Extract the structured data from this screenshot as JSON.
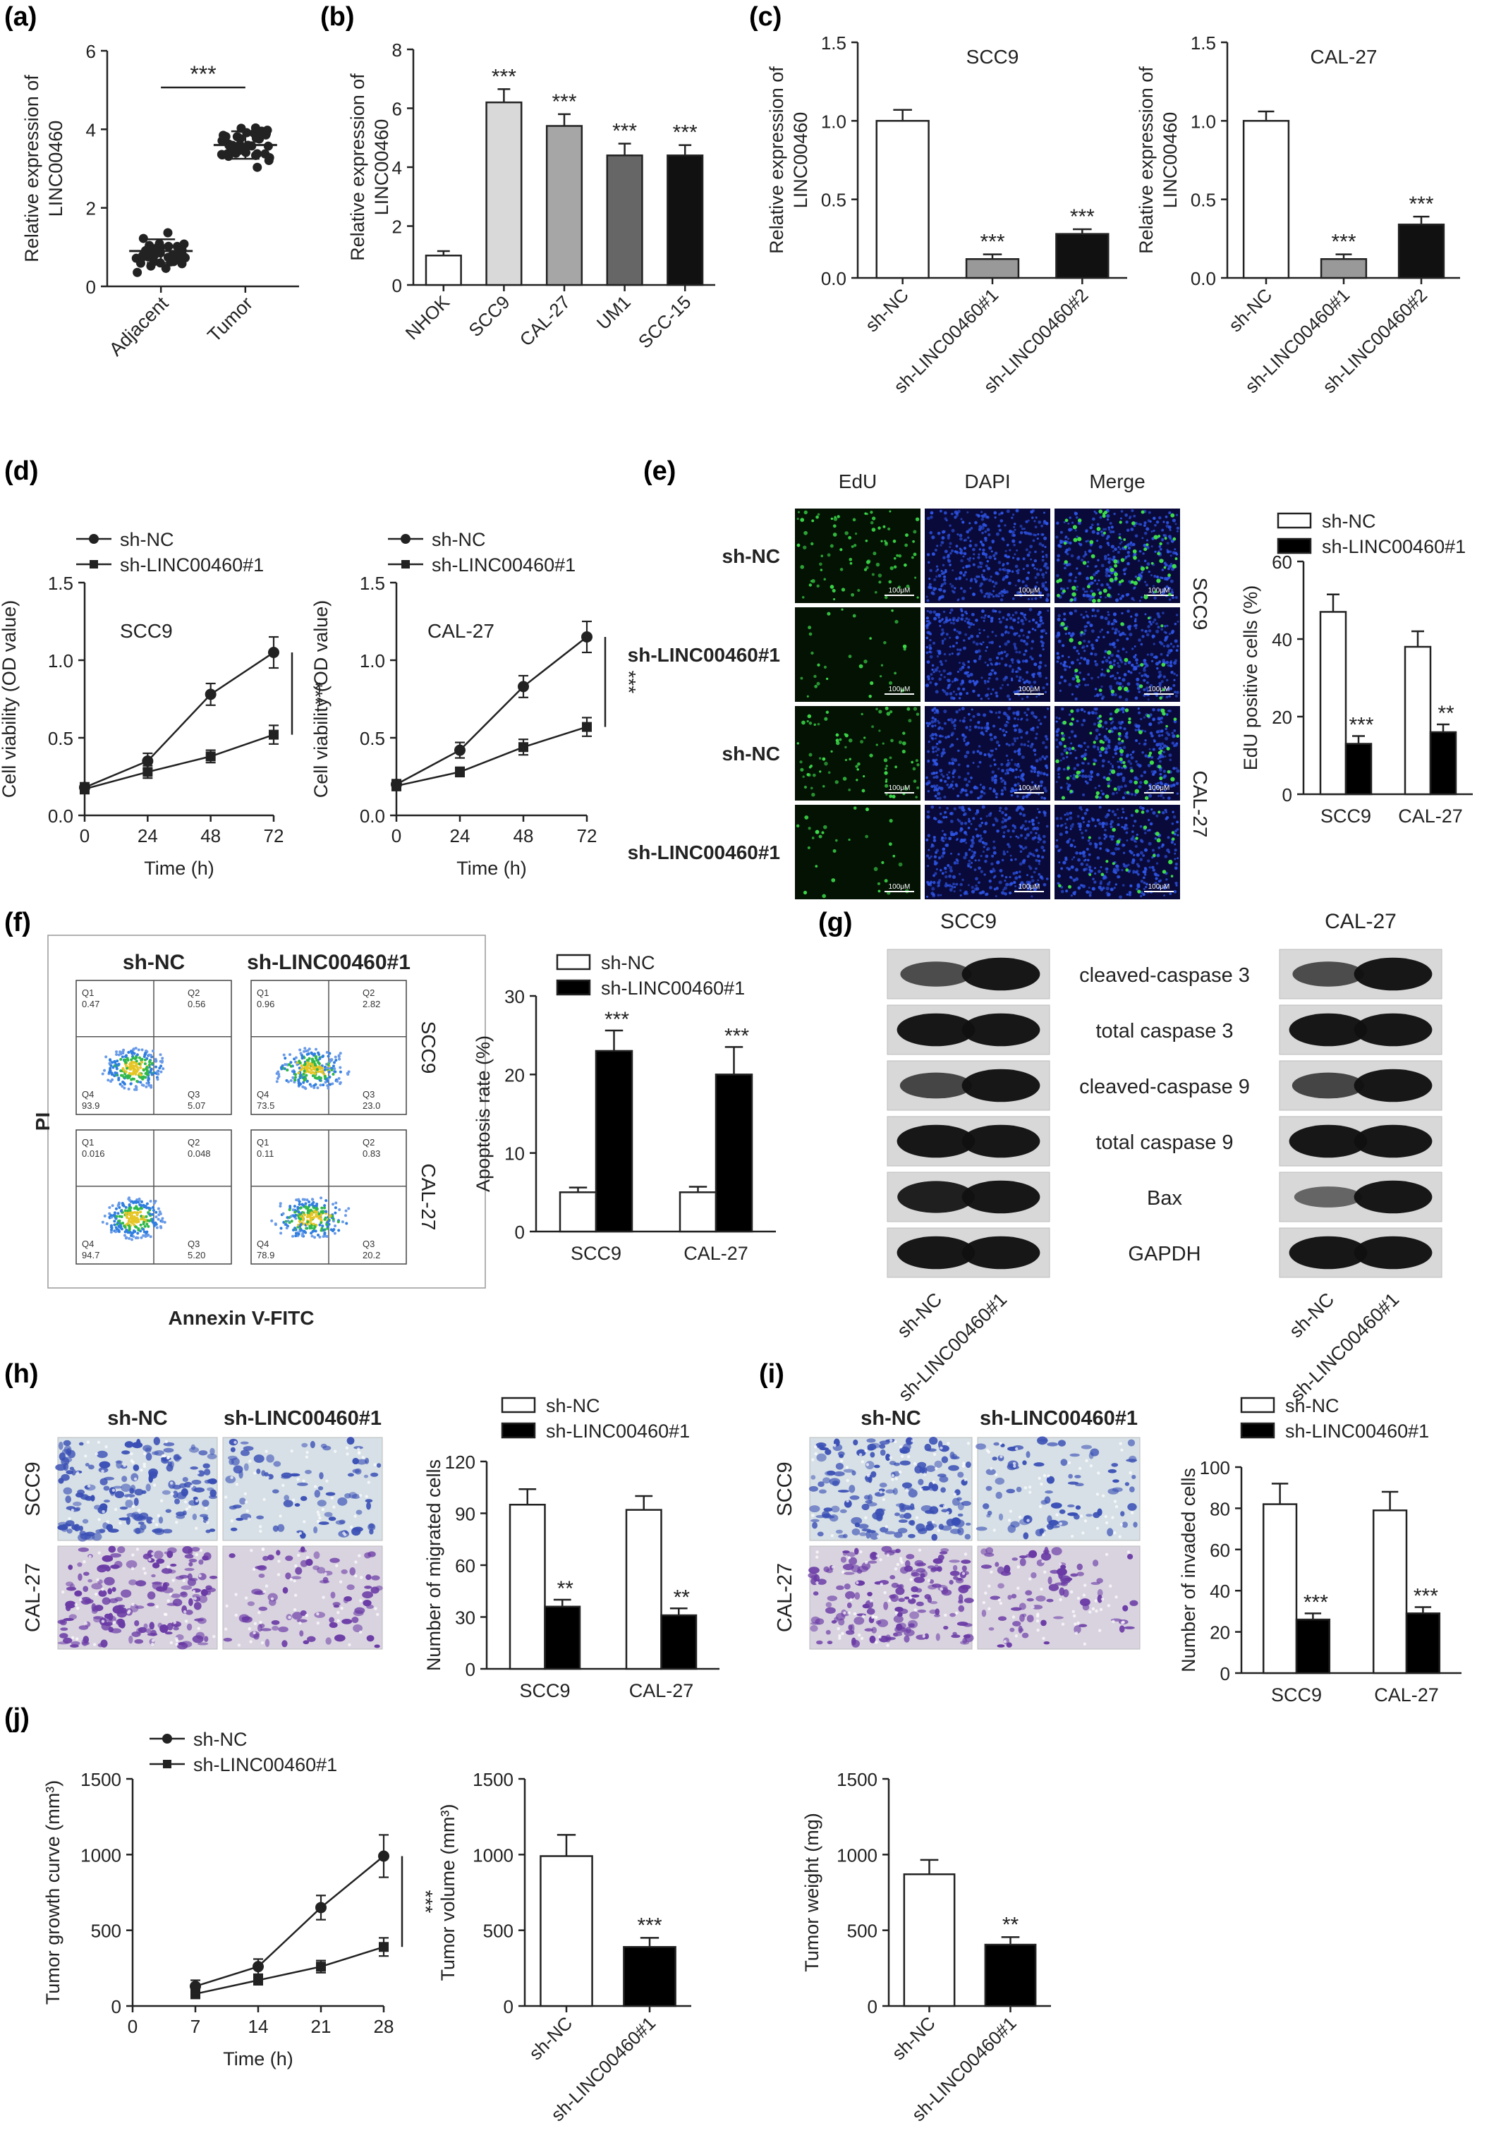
{
  "panel_letters": [
    "(a)",
    "(b)",
    "(c)",
    "(d)",
    "(e)",
    "(f)",
    "(g)",
    "(h)",
    "(i)",
    "(j)"
  ],
  "chart_data": [
    {
      "panel": "(a)",
      "type": "scatter",
      "ylabel": "Relative expression of LINC00460",
      "categories": [
        "Adjacent",
        "Tumor"
      ],
      "ylim": [
        0,
        6
      ],
      "yticks": [
        0,
        2,
        4,
        6
      ],
      "means": [
        0.9,
        3.6
      ],
      "sd": [
        0.3,
        0.35
      ],
      "annotation": "***"
    },
    {
      "panel": "(b)",
      "type": "bar",
      "ylabel": "Relative expression of LINC00460",
      "categories": [
        "NHOK",
        "SCC9",
        "CAL-27",
        "UM1",
        "SCC-15"
      ],
      "values": [
        1.0,
        6.2,
        5.4,
        4.4,
        4.4
      ],
      "errors": [
        0.15,
        0.45,
        0.4,
        0.4,
        0.35
      ],
      "stars": [
        "",
        "***",
        "***",
        "***",
        "***"
      ],
      "ylim": [
        0,
        8
      ],
      "yticks": [
        0,
        2,
        4,
        6,
        8
      ]
    },
    {
      "panel": "(c)",
      "type": "bar",
      "title": "SCC9",
      "ylabel": "Relative expression of LINC00460",
      "categories": [
        "sh-NC",
        "sh-LINC00460#1",
        "sh-LINC00460#2"
      ],
      "values": [
        1.0,
        0.12,
        0.28
      ],
      "errors": [
        0.07,
        0.03,
        0.03
      ],
      "stars": [
        "",
        "***",
        "***"
      ],
      "ylim": [
        0,
        1.5
      ],
      "yticks": [
        0.0,
        0.5,
        1.0,
        1.5
      ]
    },
    {
      "panel": "(c)",
      "type": "bar",
      "title": "CAL-27",
      "ylabel": "Relative expression of LINC00460",
      "categories": [
        "sh-NC",
        "sh-LINC00460#1",
        "sh-LINC00460#2"
      ],
      "values": [
        1.0,
        0.12,
        0.34
      ],
      "errors": [
        0.06,
        0.03,
        0.05
      ],
      "stars": [
        "",
        "***",
        "***"
      ],
      "ylim": [
        0,
        1.5
      ],
      "yticks": [
        0.0,
        0.5,
        1.0,
        1.5
      ]
    },
    {
      "panel": "(d)",
      "type": "line",
      "title": "SCC9",
      "xlabel": "Time (h)",
      "ylabel": "Cell viability (OD value)",
      "x": [
        0,
        24,
        48,
        72
      ],
      "xlim": [
        0,
        72
      ],
      "xticks": [
        0,
        24,
        48,
        72
      ],
      "ylim": [
        0,
        1.5
      ],
      "yticks": [
        0.0,
        0.5,
        1.0,
        1.5
      ],
      "series": [
        {
          "name": "sh-NC",
          "values": [
            0.18,
            0.35,
            0.78,
            1.05
          ],
          "errors": [
            0.03,
            0.05,
            0.07,
            0.1
          ]
        },
        {
          "name": "sh-LINC00460#1",
          "values": [
            0.17,
            0.28,
            0.38,
            0.52
          ],
          "errors": [
            0.03,
            0.04,
            0.04,
            0.06
          ]
        }
      ],
      "annotation": "***"
    },
    {
      "panel": "(d)",
      "type": "line",
      "title": "CAL-27",
      "xlabel": "Time (h)",
      "ylabel": "Cell viability (OD value)",
      "x": [
        0,
        24,
        48,
        72
      ],
      "xlim": [
        0,
        72
      ],
      "xticks": [
        0,
        24,
        48,
        72
      ],
      "ylim": [
        0,
        1.5
      ],
      "yticks": [
        0.0,
        0.5,
        1.0,
        1.5
      ],
      "series": [
        {
          "name": "sh-NC",
          "values": [
            0.2,
            0.42,
            0.83,
            1.15
          ],
          "errors": [
            0.03,
            0.05,
            0.07,
            0.1
          ]
        },
        {
          "name": "sh-LINC00460#1",
          "values": [
            0.19,
            0.28,
            0.44,
            0.57
          ],
          "errors": [
            0.03,
            0.03,
            0.05,
            0.06
          ]
        }
      ],
      "annotation": "***"
    },
    {
      "panel": "(e)",
      "type": "bar",
      "ylabel": "EdU positive cells (%)",
      "categories": [
        "SCC9",
        "CAL-27"
      ],
      "ylim": [
        0,
        60
      ],
      "yticks": [
        0,
        20,
        40,
        60
      ],
      "series": [
        {
          "name": "sh-NC",
          "values": [
            47,
            38
          ],
          "errors": [
            4.5,
            4
          ]
        },
        {
          "name": "sh-LINC00460#1",
          "values": [
            13,
            16
          ],
          "errors": [
            2,
            2
          ]
        }
      ],
      "stars": [
        "***",
        "**"
      ]
    },
    {
      "panel": "(f)",
      "type": "bar",
      "ylabel": "Apoptosis rate (%)",
      "categories": [
        "SCC9",
        "CAL-27"
      ],
      "ylim": [
        0,
        30
      ],
      "yticks": [
        0,
        10,
        20,
        30
      ],
      "series": [
        {
          "name": "sh-NC",
          "values": [
            5,
            5
          ],
          "errors": [
            0.6,
            0.7
          ]
        },
        {
          "name": "sh-LINC00460#1",
          "values": [
            23,
            20
          ],
          "errors": [
            2.6,
            3.5
          ]
        }
      ],
      "stars": [
        "***",
        "***"
      ]
    },
    {
      "panel": "(h)",
      "type": "bar",
      "ylabel": "Number of migrated cells",
      "categories": [
        "SCC9",
        "CAL-27"
      ],
      "ylim": [
        0,
        120
      ],
      "yticks": [
        0,
        30,
        60,
        90,
        120
      ],
      "series": [
        {
          "name": "sh-NC",
          "values": [
            95,
            92
          ],
          "errors": [
            9,
            8
          ]
        },
        {
          "name": "sh-LINC00460#1",
          "values": [
            36,
            31
          ],
          "errors": [
            4,
            4
          ]
        }
      ],
      "stars": [
        "**",
        "**"
      ]
    },
    {
      "panel": "(i)",
      "type": "bar",
      "ylabel": "Number of invaded cells",
      "categories": [
        "SCC9",
        "CAL-27"
      ],
      "ylim": [
        0,
        100
      ],
      "yticks": [
        0,
        20,
        40,
        60,
        80,
        100
      ],
      "series": [
        {
          "name": "sh-NC",
          "values": [
            82,
            79
          ],
          "errors": [
            10,
            9
          ]
        },
        {
          "name": "sh-LINC00460#1",
          "values": [
            26,
            29
          ],
          "errors": [
            3,
            3
          ]
        }
      ],
      "stars": [
        "***",
        "***"
      ]
    },
    {
      "panel": "(j)",
      "type": "line",
      "xlabel": "Time (h)",
      "ylabel": "Tumor growth curve (mm³)",
      "x": [
        7,
        14,
        21,
        28
      ],
      "xlim": [
        0,
        28
      ],
      "xticks": [
        0,
        7,
        14,
        21,
        28
      ],
      "ylim": [
        0,
        1500
      ],
      "yticks": [
        0,
        500,
        1000,
        1500
      ],
      "series": [
        {
          "name": "sh-NC",
          "values": [
            130,
            260,
            650,
            990
          ],
          "errors": [
            40,
            50,
            80,
            140
          ]
        },
        {
          "name": "sh-LINC00460#1",
          "values": [
            80,
            170,
            260,
            390
          ],
          "errors": [
            30,
            30,
            40,
            60
          ]
        }
      ],
      "annotation": "***"
    },
    {
      "panel": "(j)",
      "type": "bar",
      "ylabel": "Tumor volume (mm³)",
      "categories": [
        "sh-NC",
        "sh-LINC00460#1"
      ],
      "values": [
        990,
        390
      ],
      "errors": [
        140,
        60
      ],
      "stars": [
        "",
        "***"
      ],
      "ylim": [
        0,
        1500
      ],
      "yticks": [
        0,
        500,
        1000,
        1500
      ]
    },
    {
      "panel": "(j)",
      "type": "bar",
      "ylabel": "Tumor weight (mg)",
      "categories": [
        "sh-NC",
        "sh-LINC00460#1"
      ],
      "values": [
        870,
        405
      ],
      "errors": [
        95,
        50
      ],
      "stars": [
        "",
        "**"
      ],
      "ylim": [
        0,
        1500
      ],
      "yticks": [
        0,
        500,
        1000,
        1500
      ]
    }
  ],
  "panel_e_micro": {
    "columns": [
      "EdU",
      "DAPI",
      "Merge"
    ],
    "rows": [
      "sh-NC",
      "sh-LINC00460#1",
      "sh-NC",
      "sh-LINC00460#1"
    ],
    "side_labels": [
      "SCC9",
      "CAL-27"
    ],
    "scale_bar": "100μM"
  },
  "panel_f_flow": {
    "headers": [
      "sh-NC",
      "sh-LINC00460#1"
    ],
    "side_labels": [
      "SCC9",
      "CAL-27"
    ],
    "y_axis": "PI",
    "x_axis": "Annexin V-FITC",
    "quadrants": [
      {
        "Q1": "0.47",
        "Q2": "0.56",
        "Q3": "5.07",
        "Q4": "93.9"
      },
      {
        "Q1": "0.96",
        "Q2": "2.82",
        "Q3": "23.0",
        "Q4": "73.5"
      },
      {
        "Q1": "0.016",
        "Q2": "0.048",
        "Q3": "5.20",
        "Q4": "94.7"
      },
      {
        "Q1": "0.11",
        "Q2": "0.83",
        "Q3": "20.2",
        "Q4": "78.9"
      }
    ]
  },
  "panel_g_blot": {
    "headers": [
      "SCC9",
      "CAL-27"
    ],
    "proteins": [
      "cleaved-caspase 3",
      "total caspase 3",
      "cleaved-caspase 9",
      "total caspase 9",
      "Bax",
      "GAPDH"
    ],
    "lanes": [
      "sh-NC",
      "sh-LINC00460#1"
    ],
    "intensity": [
      [
        0.55,
        0.95,
        0.55,
        0.95
      ],
      [
        0.95,
        0.95,
        0.95,
        0.95
      ],
      [
        0.6,
        0.95,
        0.6,
        0.95
      ],
      [
        0.95,
        0.95,
        0.95,
        0.95
      ],
      [
        0.9,
        0.95,
        0.35,
        0.95
      ],
      [
        0.95,
        0.95,
        0.95,
        0.95
      ]
    ]
  },
  "panel_h_images": {
    "headers": [
      "sh-NC",
      "sh-LINC00460#1"
    ],
    "row_labels": [
      "SCC9",
      "CAL-27"
    ]
  },
  "panel_i_images": {
    "headers": [
      "sh-NC",
      "sh-LINC00460#1"
    ],
    "row_labels": [
      "SCC9",
      "CAL-27"
    ]
  },
  "legend": [
    "sh-NC",
    "sh-LINC00460#1"
  ],
  "colors": {
    "nc_fill": "#ffffff",
    "kd_fill": "#000000",
    "b_fills": [
      "#ffffff",
      "#d9d9d9",
      "#a6a6a6",
      "#666666",
      "#111111"
    ],
    "c_fills": [
      "#ffffff",
      "#999999",
      "#111111"
    ],
    "micro_bg": "#0a0a3a",
    "edu_dot": "#3ddc4a",
    "dapi_dot": "#2e55e6",
    "stain_nc": "#3a4fb5",
    "stain_cal": "#6a3aa5"
  }
}
